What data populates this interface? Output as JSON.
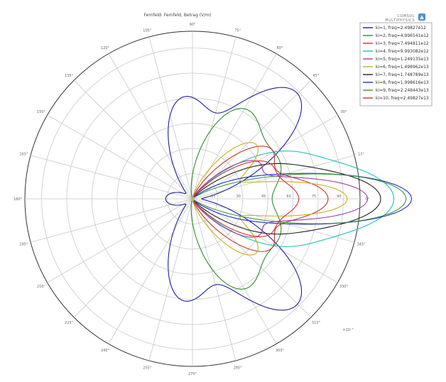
{
  "logo": {
    "line1": "COMSOL",
    "line2": "MULTIPHYSICS"
  },
  "colors": [
    "#1f1f9a",
    "#2e8b2e",
    "#c0392b",
    "#1fbfbf",
    "#a040a0",
    "#c8b020",
    "#222222",
    "#2a2ad0",
    "#3a9a3a",
    "#d03030"
  ],
  "chart_data": {
    "type": "polar-line",
    "title": "Fernfeld: Fernfeld, Betrag (V/m)",
    "radial_ticks": [
      "15",
      "30",
      "45",
      "60",
      "75",
      "90"
    ],
    "radial_max": 100,
    "radial_unit": "×10⁻⁵",
    "angle_ticks": [
      "0°",
      "15°",
      "30°",
      "45°",
      "60°",
      "75°",
      "90°",
      "105°",
      "120°",
      "135°",
      "150°",
      "165°",
      "180°",
      "195°",
      "210°",
      "225°",
      "240°",
      "255°",
      "270°",
      "285°",
      "300°",
      "315°",
      "330°",
      "345°"
    ],
    "legend_position": "top-right",
    "series": [
      {
        "name": "ki=1, freq=2.49827e12",
        "lobes": [
          {
            "dir": 45,
            "r": 88,
            "k": 10
          },
          {
            "dir": -45,
            "r": 88,
            "k": 10
          },
          {
            "dir": 95,
            "r": 60,
            "k": 10
          },
          {
            "dir": -95,
            "r": 60,
            "k": 10
          },
          {
            "dir": 180,
            "r": 16,
            "k": 6
          }
        ]
      },
      {
        "name": "ki=2, freq=4.996541e12",
        "lobes": [
          {
            "dir": 60,
            "r": 60,
            "k": 10
          },
          {
            "dir": -60,
            "r": 60,
            "k": 10
          },
          {
            "dir": 20,
            "r": 50,
            "k": 12
          },
          {
            "dir": -20,
            "r": 50,
            "k": 12
          }
        ]
      },
      {
        "name": "ki=3, freq=7.494811e12",
        "lobes": [
          {
            "dir": 0,
            "r": 70,
            "k": 28
          },
          {
            "dir": 32,
            "r": 55,
            "k": 14
          },
          {
            "dir": -32,
            "r": 55,
            "k": 14
          }
        ]
      },
      {
        "name": "ki=4, freq=9.993082e12",
        "lobes": [
          {
            "dir": 0,
            "r": 82,
            "k": 30
          },
          {
            "dir": 22,
            "r": 64,
            "k": 16
          },
          {
            "dir": -22,
            "r": 64,
            "k": 16
          }
        ]
      },
      {
        "name": "ki=5, freq=1.249135e13",
        "lobes": [
          {
            "dir": 0,
            "r": 95,
            "k": 40
          },
          {
            "dir": 28,
            "r": 45,
            "k": 18
          },
          {
            "dir": -28,
            "r": 45,
            "k": 18
          }
        ]
      },
      {
        "name": "ki=6, freq=1.498962e13",
        "lobes": [
          {
            "dir": 0,
            "r": 90,
            "k": 36
          },
          {
            "dir": 40,
            "r": 50,
            "k": 14
          },
          {
            "dir": -40,
            "r": 50,
            "k": 14
          }
        ]
      },
      {
        "name": "ki=7, freq=1.748789e13",
        "lobes": [
          {
            "dir": 0,
            "r": 72,
            "k": 40
          },
          {
            "dir": 18,
            "r": 55,
            "k": 20
          },
          {
            "dir": -18,
            "r": 55,
            "k": 20
          }
        ]
      },
      {
        "name": "ki=8, freq=1.998616e13",
        "lobes": [
          {
            "dir": 0,
            "r": 92,
            "k": 50
          },
          {
            "dir": 14,
            "r": 40,
            "k": 24
          },
          {
            "dir": -14,
            "r": 40,
            "k": 24
          }
        ]
      },
      {
        "name": "ki=9, freq=2.248443e13",
        "lobes": [
          {
            "dir": 0,
            "r": 78,
            "k": 44
          },
          {
            "dir": 10,
            "r": 38,
            "k": 28
          },
          {
            "dir": -10,
            "r": 38,
            "k": 28
          }
        ]
      },
      {
        "name": "ki=10, freq=2.49827e13",
        "lobes": [
          {
            "dir": 0,
            "r": 50,
            "k": 30
          },
          {
            "dir": 25,
            "r": 48,
            "k": 20
          },
          {
            "dir": -25,
            "r": 48,
            "k": 20
          }
        ]
      }
    ]
  }
}
